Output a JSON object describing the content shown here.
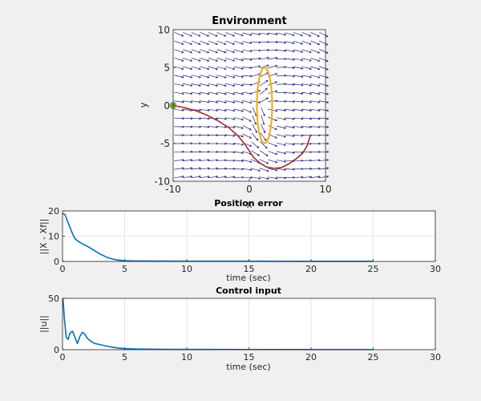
{
  "chart_data": [
    {
      "type": "vector-field",
      "title": "Environment",
      "xlabel": "x",
      "ylabel": "y",
      "xlim": [
        -10,
        10
      ],
      "ylim": [
        -10,
        10
      ],
      "xticks": [
        -10,
        0,
        10
      ],
      "yticks": [
        10,
        5,
        0,
        -5,
        -10
      ],
      "grid": false,
      "colors": {
        "arrows": "#1f1f7a",
        "trajectory": "#a52a2a",
        "obstacle": "#edb120",
        "start": "#77ac30"
      },
      "obstacle": {
        "shape": "ellipse",
        "center": [
          2,
          0
        ],
        "rx": 1,
        "ry": 5
      },
      "start_point": [
        -10,
        0
      ],
      "trajectory": {
        "x": [
          -10,
          -8.5,
          -7,
          -5.5,
          -4,
          -2.6,
          -1.5,
          -0.6,
          0,
          0.6,
          1.4,
          2.2,
          3.2,
          4.2,
          5.2,
          6.2,
          7,
          7.6,
          8
        ],
        "y": [
          0,
          -0.3,
          -0.7,
          -1.3,
          -2.1,
          -3,
          -4,
          -5.1,
          -6,
          -6.9,
          -7.6,
          -8.1,
          -8.3,
          -8.2,
          -7.7,
          -7,
          -6.3,
          -5.3,
          -4
        ]
      }
    },
    {
      "type": "line",
      "title": "Position error",
      "xlabel": "time (sec)",
      "ylabel": "||X - Xf||",
      "xlim": [
        0,
        30
      ],
      "ylim": [
        0,
        20
      ],
      "xticks": [
        0,
        5,
        10,
        15,
        20,
        25,
        30
      ],
      "yticks": [
        20,
        10,
        0
      ],
      "grid": true,
      "series": [
        {
          "color": "#0072bd",
          "x": [
            0,
            0.2,
            0.4,
            0.6,
            0.8,
            1.0,
            1.3,
            1.6,
            2.0,
            2.5,
            3.0,
            3.5,
            4.0,
            4.5,
            5.0,
            6,
            8,
            10,
            12,
            15,
            20,
            25
          ],
          "y": [
            19,
            18.5,
            16,
            13.5,
            11,
            9,
            7.8,
            7,
            6,
            4.5,
            3,
            1.8,
            1.0,
            0.5,
            0.3,
            0.2,
            0.15,
            0.1,
            0.1,
            0.1,
            0.05,
            0.05
          ]
        }
      ]
    },
    {
      "type": "line",
      "title": "Control input",
      "xlabel": "time (sec)",
      "ylabel": "||u||",
      "xlim": [
        0,
        30
      ],
      "ylim": [
        0,
        50
      ],
      "xticks": [
        0,
        5,
        10,
        15,
        20,
        25,
        30
      ],
      "yticks": [
        50,
        0
      ],
      "grid": true,
      "series": [
        {
          "color": "#0072bd",
          "x": [
            0,
            0.05,
            0.15,
            0.3,
            0.45,
            0.6,
            0.8,
            1.0,
            1.2,
            1.4,
            1.6,
            1.8,
            2.0,
            2.3,
            2.6,
            3.0,
            3.5,
            4.0,
            4.5,
            5.0,
            6,
            8,
            10,
            15,
            20,
            25
          ],
          "y": [
            50,
            48,
            30,
            12,
            10,
            16,
            18,
            12,
            6,
            13,
            17,
            15,
            11,
            8,
            6,
            5,
            3.5,
            2.5,
            1.5,
            1,
            0.6,
            0.4,
            0.3,
            0.2,
            0.1,
            0.1
          ]
        }
      ]
    }
  ]
}
